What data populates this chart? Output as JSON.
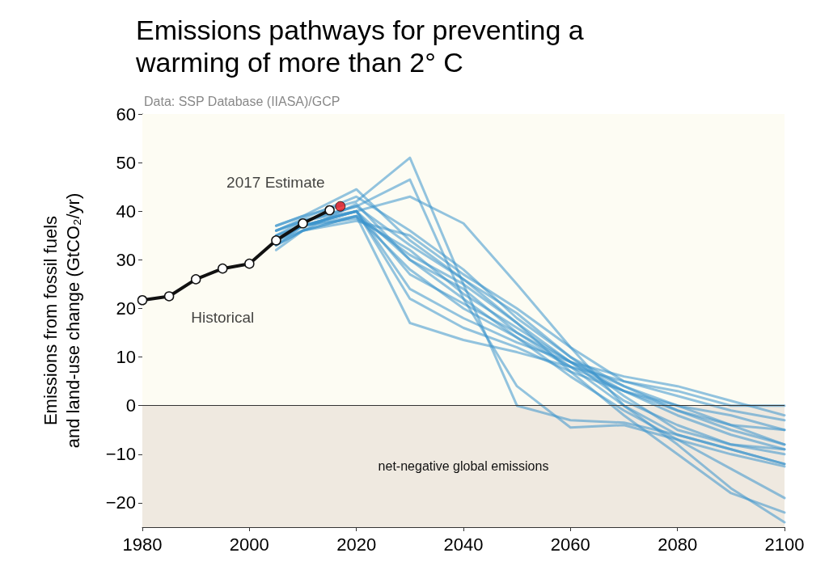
{
  "chart_data": {
    "type": "line",
    "title": "Emissions pathways for preventing a\nwarming of more than 2° C",
    "subtitle": "Data: SSP Database (IIASA)/GCP",
    "ylabel": "Emissions from fossil fuels\nand land-use change (GtCO₂/yr)",
    "xlim": [
      1980,
      2100
    ],
    "xticks": [
      1980,
      2000,
      2020,
      2040,
      2060,
      2080,
      2100
    ],
    "ylim": [
      -25,
      60
    ],
    "yticks": [
      -20,
      -10,
      0,
      10,
      20,
      30,
      40,
      50,
      60
    ],
    "grid": false,
    "line_style": "solid",
    "bands": [
      {
        "axis": "y",
        "from": 0,
        "to": 60,
        "color": "#fdfcf3",
        "label": null
      },
      {
        "axis": "y",
        "from": -25,
        "to": 0,
        "color": "#efe9e0",
        "label": "net-negative global emissions"
      }
    ],
    "ref_lines": [
      {
        "axis": "y",
        "value": 0,
        "color": "#333333",
        "label": null
      }
    ],
    "annotations": [
      {
        "text": "Historical",
        "x": 1995,
        "y": 28.2
      },
      {
        "text": "2017 Estimate",
        "x": 2017,
        "y": 41
      }
    ],
    "series": [
      {
        "type": "line",
        "color": "#111111",
        "marker": "circle",
        "x": [
          1980,
          1985,
          1990,
          1995,
          2000,
          2005,
          2010,
          2015
        ],
        "values": [
          21.7,
          22.5,
          26,
          28.2,
          29.2,
          34,
          37.5,
          40.2
        ]
      },
      {
        "type": "scatter",
        "color": "#e8141b",
        "marker": "circle",
        "x": [
          2017
        ],
        "values": [
          41
        ]
      },
      {
        "color": "#3a93cc",
        "marker": "none",
        "x": [
          2005,
          2010,
          2020,
          2030,
          2040,
          2050,
          2060,
          2070,
          2080,
          2090,
          2100
        ],
        "values": [
          37,
          39,
          42,
          51,
          25,
          0,
          -3,
          -3.5,
          -6,
          -9,
          -12
        ]
      },
      {
        "color": "#3a93cc",
        "marker": "none",
        "x": [
          2005,
          2010,
          2020,
          2030,
          2040,
          2050,
          2060,
          2070,
          2080,
          2090,
          2100
        ],
        "values": [
          35,
          38,
          41,
          46.5,
          22,
          4,
          -4.5,
          -4,
          -7,
          -10,
          -12.5
        ]
      },
      {
        "color": "#3a93cc",
        "marker": "none",
        "x": [
          2005,
          2010,
          2020,
          2030,
          2040,
          2050,
          2060,
          2070,
          2080,
          2090,
          2100
        ],
        "values": [
          36,
          38,
          40,
          43,
          37.5,
          25,
          12,
          0,
          -8,
          -17,
          -24
        ]
      },
      {
        "color": "#3a93cc",
        "marker": "none",
        "x": [
          2005,
          2010,
          2020,
          2030,
          2040,
          2050,
          2060,
          2070,
          2080,
          2090,
          2100
        ],
        "values": [
          34,
          37,
          39,
          17,
          13.5,
          11,
          8,
          5,
          3,
          0,
          0
        ]
      },
      {
        "color": "#3a93cc",
        "marker": "none",
        "x": [
          2005,
          2010,
          2020,
          2030,
          2040,
          2050,
          2060,
          2070,
          2080,
          2090,
          2100
        ],
        "values": [
          33,
          37,
          40,
          30,
          22,
          14,
          8,
          3,
          0,
          -2,
          -5
        ]
      },
      {
        "color": "#3a93cc",
        "marker": "none",
        "x": [
          2005,
          2010,
          2020,
          2030,
          2040,
          2050,
          2060,
          2070,
          2080,
          2090,
          2100
        ],
        "values": [
          32,
          36,
          38,
          35,
          27,
          20,
          12,
          5,
          2,
          -1,
          -3
        ]
      },
      {
        "color": "#3a93cc",
        "marker": "none",
        "x": [
          2005,
          2010,
          2020,
          2030,
          2040,
          2050,
          2060,
          2070,
          2080,
          2090,
          2100
        ],
        "values": [
          36,
          38,
          41,
          33,
          26,
          19,
          10,
          4,
          -1,
          -5,
          -8
        ]
      },
      {
        "color": "#3a93cc",
        "marker": "none",
        "x": [
          2005,
          2010,
          2020,
          2030,
          2040,
          2050,
          2060,
          2070,
          2080,
          2090,
          2100
        ],
        "values": [
          35,
          37,
          40,
          24,
          18,
          13,
          9,
          6,
          4,
          1,
          -2
        ]
      },
      {
        "color": "#3a93cc",
        "marker": "none",
        "x": [
          2005,
          2010,
          2020,
          2030,
          2040,
          2050,
          2060,
          2070,
          2080,
          2090,
          2100
        ],
        "values": [
          33,
          36,
          39,
          28,
          20,
          14,
          6,
          -1,
          -7,
          -13,
          -19
        ]
      },
      {
        "color": "#3a93cc",
        "marker": "none",
        "x": [
          2005,
          2010,
          2020,
          2030,
          2040,
          2050,
          2060,
          2070,
          2080,
          2090,
          2100
        ],
        "values": [
          34,
          37,
          38.5,
          32,
          23,
          16,
          9,
          3,
          -2,
          -6,
          -9
        ]
      },
      {
        "color": "#3a93cc",
        "marker": "none",
        "x": [
          2005,
          2010,
          2020,
          2030,
          2040,
          2050,
          2060,
          2070,
          2080,
          2090,
          2100
        ],
        "values": [
          36,
          38.5,
          43,
          36,
          28,
          18,
          10,
          2,
          -5,
          -8,
          -10
        ]
      },
      {
        "color": "#3a93cc",
        "marker": "none",
        "x": [
          2005,
          2010,
          2020,
          2030,
          2040,
          2050,
          2060,
          2070,
          2080,
          2090,
          2100
        ],
        "values": [
          35,
          37,
          40,
          22,
          16,
          12,
          7,
          3,
          -1,
          -4,
          -5
        ]
      },
      {
        "color": "#3a93cc",
        "marker": "none",
        "x": [
          2005,
          2010,
          2020,
          2030,
          2040,
          2050,
          2060,
          2070,
          2080,
          2090,
          2100
        ],
        "values": [
          34,
          36,
          41.5,
          30,
          24,
          15,
          8,
          0,
          -6,
          -9,
          -12
        ]
      },
      {
        "color": "#3a93cc",
        "marker": "none",
        "x": [
          2005,
          2010,
          2020,
          2030,
          2040,
          2050,
          2060,
          2070,
          2080,
          2090,
          2100
        ],
        "values": [
          37,
          39,
          44.5,
          34,
          26,
          17,
          7,
          -2,
          -10,
          -18,
          -22
        ]
      },
      {
        "color": "#3a93cc",
        "marker": "none",
        "x": [
          2005,
          2010,
          2020,
          2030,
          2040,
          2050,
          2060,
          2070,
          2080,
          2090,
          2100
        ],
        "values": [
          33,
          36,
          39,
          31,
          25,
          17,
          9,
          1,
          -4,
          -8,
          -9
        ]
      },
      {
        "color": "#3a93cc",
        "marker": "none",
        "x": [
          2005,
          2010,
          2020,
          2030,
          2040,
          2050,
          2060,
          2070,
          2080,
          2090,
          2100
        ],
        "values": [
          34,
          37,
          40,
          27,
          21,
          15,
          9,
          4,
          0,
          -4,
          -8
        ]
      }
    ]
  }
}
